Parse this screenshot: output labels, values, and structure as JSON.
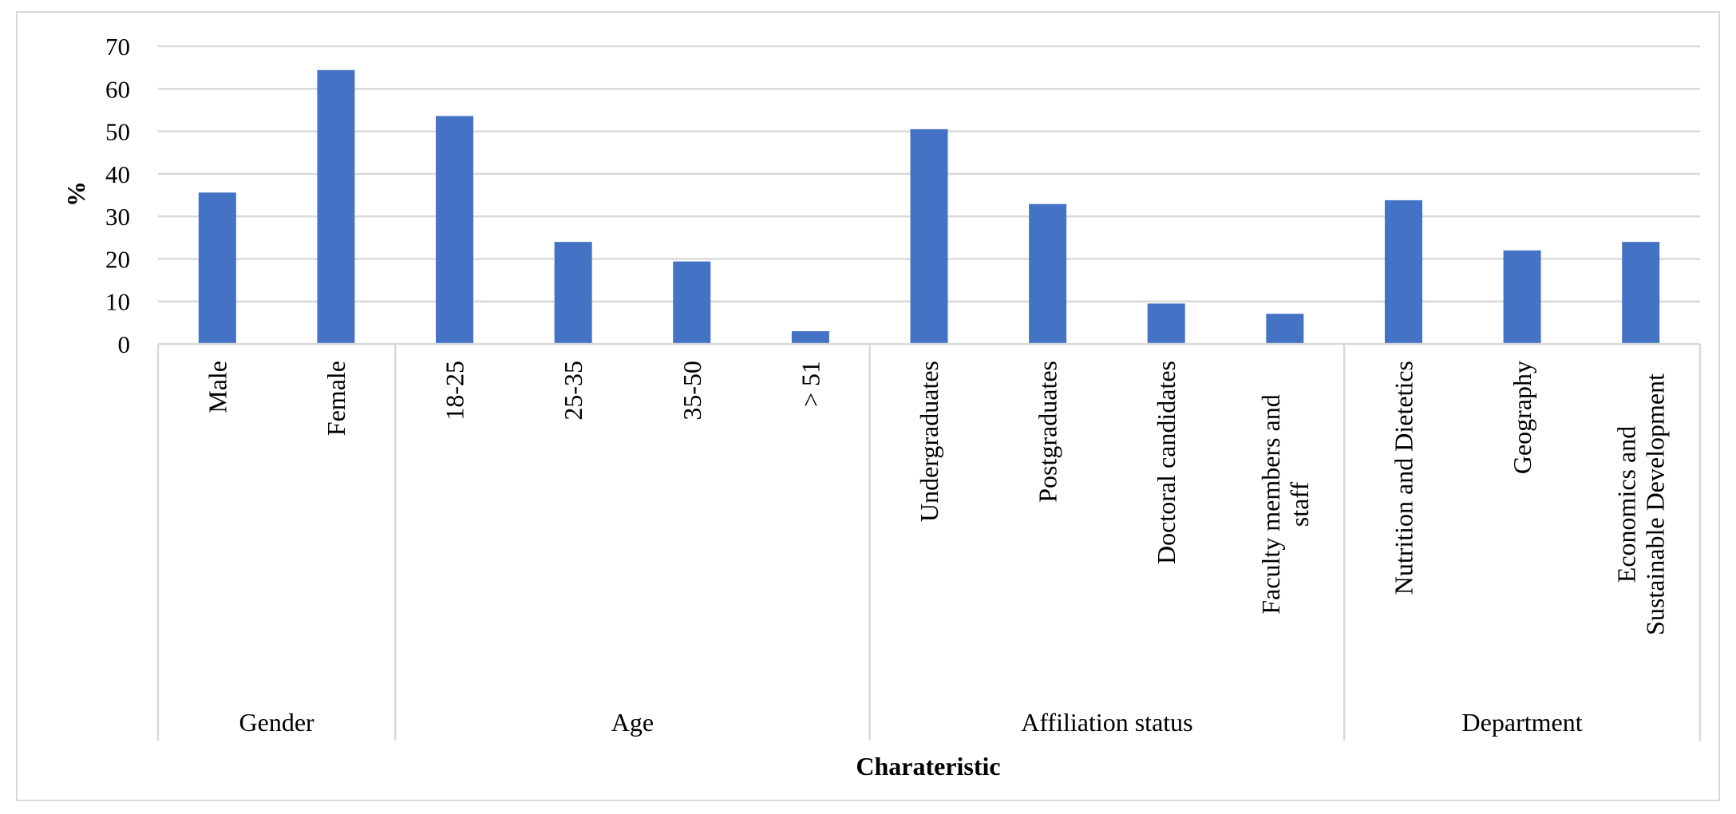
{
  "chart_data": {
    "type": "bar",
    "xlabel": "Charateristic",
    "ylabel": "%",
    "ylim": [
      0,
      70
    ],
    "yticks": [
      0,
      10,
      20,
      30,
      40,
      50,
      60,
      70
    ],
    "grid": true,
    "bar_color": "#4472c4",
    "gridline_color": "#d9d9d9",
    "categories": [
      "Male",
      "Female",
      "18-25",
      "25-35",
      "35-50",
      "> 51",
      "Undergraduates",
      "Postgraduates",
      "Doctoral candidates",
      "Faculty members and staff",
      "Nutrition and Dietetics",
      "Geography",
      "Economics and Sustainable Development"
    ],
    "values": [
      35.6,
      64.4,
      53.6,
      24.0,
      19.4,
      3.0,
      50.5,
      32.9,
      9.5,
      7.1,
      33.8,
      22.0,
      24.0
    ],
    "groups": [
      {
        "label": "Gender",
        "count": 2
      },
      {
        "label": "Age",
        "count": 4
      },
      {
        "label": "Affiliation status",
        "count": 4
      },
      {
        "label": "Department",
        "count": 3
      }
    ]
  }
}
